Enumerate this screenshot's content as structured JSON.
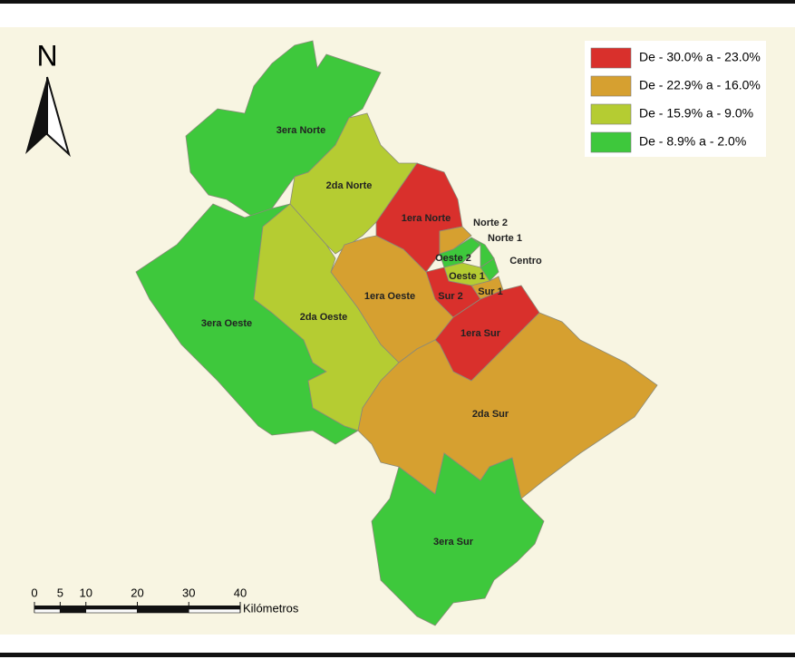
{
  "north": "N",
  "legend": [
    {
      "label": "De - 30.0% a - 23.0%",
      "color": "#d9302c"
    },
    {
      "label": "De - 22.9% a - 16.0%",
      "color": "#d6a030"
    },
    {
      "label": "De - 15.9% a - 9.0%",
      "color": "#b5cc32"
    },
    {
      "label": "De - 8.9% a - 2.0%",
      "color": "#3ec83c"
    }
  ],
  "regions": [
    {
      "name": "3era Norte",
      "color": "#3ec83c"
    },
    {
      "name": "2da Norte",
      "color": "#b5cc32"
    },
    {
      "name": "3era Oeste",
      "color": "#3ec83c"
    },
    {
      "name": "2da Oeste",
      "color": "#b5cc32"
    },
    {
      "name": "1era Oeste",
      "color": "#d6a030"
    },
    {
      "name": "1era Norte",
      "color": "#d9302c"
    },
    {
      "name": "Norte 2",
      "color": "#d6a030"
    },
    {
      "name": "Oeste 2",
      "color": "#3ec83c"
    },
    {
      "name": "Norte 1",
      "color": "#3ec83c"
    },
    {
      "name": "Centro",
      "color": "#3ec83c"
    },
    {
      "name": "Oeste 1",
      "color": "#b5cc32"
    },
    {
      "name": "Sur 1",
      "color": "#d6a030"
    },
    {
      "name": "Sur 2",
      "color": "#d9302c"
    },
    {
      "name": "1era Sur",
      "color": "#d9302c"
    },
    {
      "name": "2da Sur",
      "color": "#d6a030"
    },
    {
      "name": "3era Sur",
      "color": "#3ec83c"
    }
  ],
  "scale": {
    "ticks": [
      0,
      5,
      10,
      20,
      30,
      40
    ],
    "unit": "Kilómetros"
  }
}
